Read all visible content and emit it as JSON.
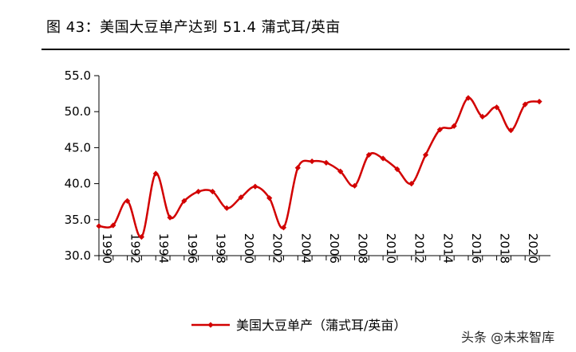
{
  "figure": {
    "title": "图 43：美国大豆单产达到 51.4 蒲式耳/英亩"
  },
  "watermark": "头条 @未来智库",
  "chart_data": {
    "type": "line",
    "x": [
      1990,
      1991,
      1992,
      1993,
      1994,
      1995,
      1996,
      1997,
      1998,
      1999,
      2000,
      2001,
      2002,
      2003,
      2004,
      2005,
      2006,
      2007,
      2008,
      2009,
      2010,
      2011,
      2012,
      2013,
      2014,
      2015,
      2016,
      2017,
      2018,
      2019,
      2020,
      2021
    ],
    "series": [
      {
        "name": "美国大豆单产（蒲式耳/英亩）",
        "values": [
          34.1,
          34.2,
          37.6,
          32.6,
          41.4,
          35.3,
          37.6,
          38.9,
          38.9,
          36.6,
          38.1,
          39.6,
          38.0,
          33.9,
          42.2,
          43.1,
          42.9,
          41.7,
          39.7,
          44.0,
          43.5,
          42.0,
          40.0,
          44.0,
          47.5,
          48.0,
          51.9,
          49.3,
          50.6,
          47.4,
          51.0,
          51.4
        ],
        "color": "#d20000"
      }
    ],
    "ylim": [
      30.0,
      55.0
    ],
    "yticks": [
      "30.0",
      "35.0",
      "40.0",
      "45.0",
      "50.0",
      "55.0"
    ],
    "xticks": [
      "1990",
      "1992",
      "1994",
      "1996",
      "1998",
      "2000",
      "2002",
      "2004",
      "2006",
      "2008",
      "2010",
      "2012",
      "2014",
      "2016",
      "2018",
      "2020"
    ],
    "grid": false,
    "legend": "bottom-center"
  }
}
